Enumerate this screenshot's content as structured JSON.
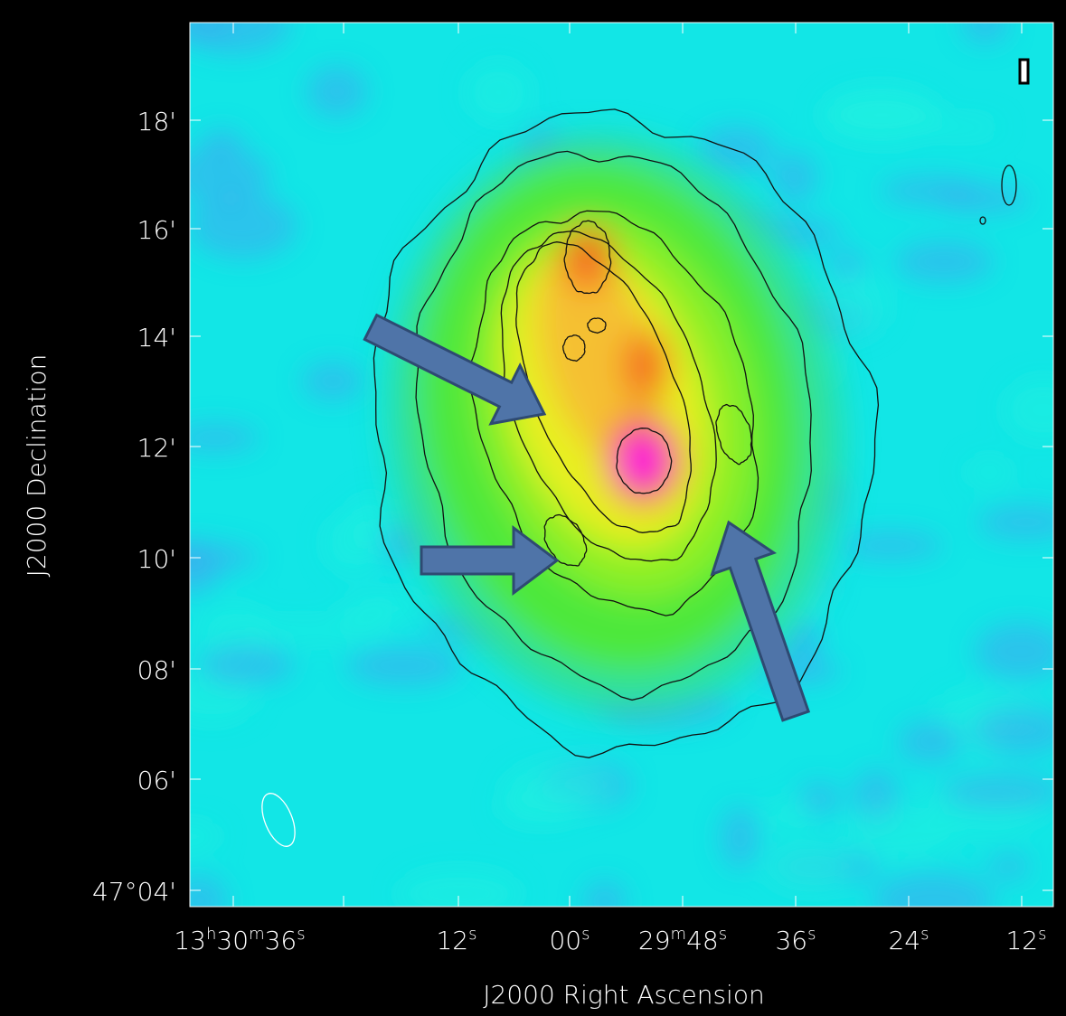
{
  "axes": {
    "y_label": "J2000 Declination",
    "x_label": "J2000 Right Ascension",
    "y_ticks": [
      "18'",
      "16'",
      "14'",
      "12'",
      "10'",
      "08'",
      "06'",
      "47°04'"
    ],
    "x_ticks": [
      [
        {
          "text": "13"
        },
        {
          "sup": "h"
        },
        {
          "text": "30"
        },
        {
          "sup": "m"
        },
        {
          "text": "36"
        },
        {
          "sup": "s"
        }
      ],
      [
        {
          "text": "12"
        },
        {
          "sup": "s"
        }
      ],
      [
        {
          "text": "00"
        },
        {
          "sup": "s"
        }
      ],
      [
        {
          "text": "29"
        },
        {
          "sup": "m"
        },
        {
          "text": "48"
        },
        {
          "sup": "s"
        }
      ],
      [
        {
          "text": "36"
        },
        {
          "sup": "s"
        }
      ],
      [
        {
          "text": "24"
        },
        {
          "sup": "s"
        }
      ],
      [
        {
          "text": "12"
        },
        {
          "sup": "s"
        }
      ]
    ]
  }
}
